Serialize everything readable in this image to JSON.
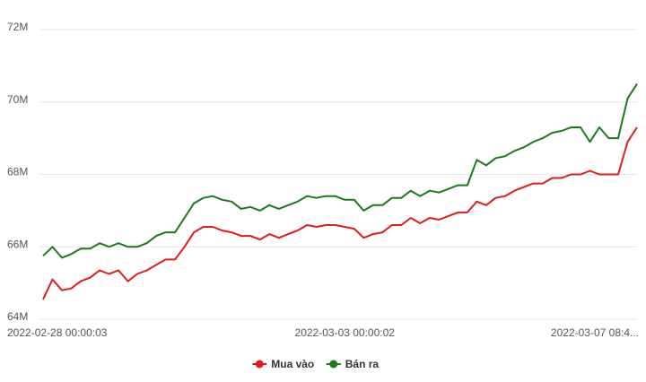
{
  "chart_data": {
    "type": "line",
    "categories": [
      "2022-02-28 00:00:03",
      null,
      null,
      null,
      null,
      null,
      null,
      null,
      null,
      null,
      null,
      null,
      null,
      null,
      null,
      null,
      null,
      null,
      null,
      null,
      null,
      null,
      null,
      null,
      null,
      null,
      null,
      null,
      null,
      null,
      null,
      null,
      "2022-03-03 00:00:02",
      null,
      null,
      null,
      null,
      null,
      null,
      null,
      null,
      null,
      null,
      null,
      null,
      null,
      null,
      null,
      null,
      null,
      null,
      null,
      null,
      null,
      null,
      null,
      null,
      null,
      null,
      null,
      null,
      null,
      null,
      "2022-03-07 08:4..."
    ],
    "series": [
      {
        "name": "Mua vào",
        "color": "#e31a1c",
        "values": [
          64.55,
          65.1,
          64.8,
          64.85,
          65.05,
          65.15,
          65.35,
          65.25,
          65.35,
          65.05,
          65.25,
          65.35,
          65.5,
          65.65,
          65.65,
          66.0,
          66.4,
          66.55,
          66.55,
          66.45,
          66.4,
          66.3,
          66.3,
          66.2,
          66.35,
          66.25,
          66.35,
          66.45,
          66.6,
          66.55,
          66.6,
          66.6,
          66.55,
          66.5,
          66.25,
          66.35,
          66.4,
          66.6,
          66.6,
          66.8,
          66.65,
          66.8,
          66.75,
          66.85,
          66.95,
          66.95,
          67.25,
          67.15,
          67.35,
          67.4,
          67.55,
          67.65,
          67.75,
          67.75,
          67.9,
          67.9,
          68.0,
          68.0,
          68.1,
          68.0,
          68.0,
          68.0,
          68.9,
          69.3
        ]
      },
      {
        "name": "Bán ra",
        "color": "#1a7a1a",
        "values": [
          65.75,
          66.0,
          65.7,
          65.8,
          65.95,
          65.95,
          66.1,
          66.0,
          66.1,
          66.0,
          66.0,
          66.1,
          66.3,
          66.4,
          66.4,
          66.8,
          67.2,
          67.35,
          67.4,
          67.3,
          67.25,
          67.05,
          67.1,
          67.0,
          67.15,
          67.05,
          67.15,
          67.25,
          67.4,
          67.35,
          67.4,
          67.4,
          67.3,
          67.3,
          67.0,
          67.15,
          67.15,
          67.35,
          67.35,
          67.55,
          67.4,
          67.55,
          67.5,
          67.6,
          67.7,
          67.7,
          68.4,
          68.25,
          68.45,
          68.5,
          68.65,
          68.75,
          68.9,
          69.0,
          69.15,
          69.2,
          69.3,
          69.3,
          68.9,
          69.3,
          69.0,
          69.0,
          70.1,
          70.5
        ]
      }
    ],
    "ylim": [
      64,
      72
    ],
    "yticks": [
      {
        "value": 64,
        "label": "64M"
      },
      {
        "value": 66,
        "label": "66M"
      },
      {
        "value": 68,
        "label": "68M"
      },
      {
        "value": 70,
        "label": "70M"
      },
      {
        "value": 72,
        "label": "72M"
      }
    ],
    "grid": true
  }
}
